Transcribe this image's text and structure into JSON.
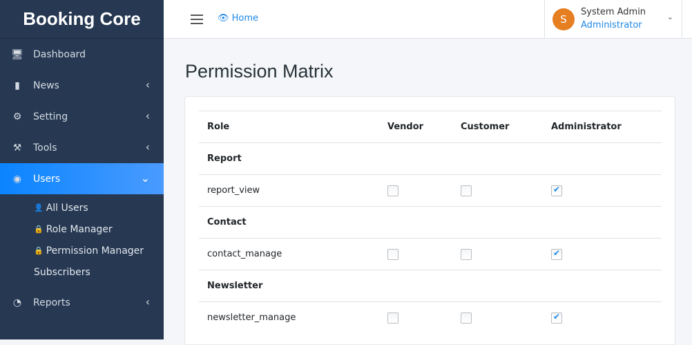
{
  "brand": "Booking Core",
  "sidebar": {
    "items": [
      {
        "label": "Dashboard",
        "icon": "monitor-icon",
        "chevron": false
      },
      {
        "label": "News",
        "icon": "book-icon",
        "chevron": true
      },
      {
        "label": "Setting",
        "icon": "gear-icon",
        "chevron": true
      },
      {
        "label": "Tools",
        "icon": "hammer-icon",
        "chevron": true
      },
      {
        "label": "Users",
        "icon": "users-icon",
        "chevron": true,
        "active": true
      },
      {
        "label": "Reports",
        "icon": "pie-chart-icon",
        "chevron": true
      }
    ],
    "users_sub": [
      {
        "label": "All Users",
        "icon": "user-icon"
      },
      {
        "label": "Role Manager",
        "icon": "lock-icon"
      },
      {
        "label": "Permission Manager",
        "icon": "lock-icon"
      },
      {
        "label": "Subscribers",
        "icon": ""
      }
    ]
  },
  "topbar": {
    "home": "Home",
    "user_name": "System Admin",
    "user_role": "Administrator",
    "avatar_letter": "S",
    "avatar_color": "#e67e22"
  },
  "page_title": "Permission Matrix",
  "table": {
    "headers": [
      "Role",
      "Vendor",
      "Customer",
      "Administrator"
    ],
    "groups": [
      {
        "name": "Report",
        "rows": [
          {
            "perm": "report_view",
            "values": [
              false,
              false,
              true
            ]
          }
        ]
      },
      {
        "name": "Contact",
        "rows": [
          {
            "perm": "contact_manage",
            "values": [
              false,
              false,
              true
            ]
          }
        ]
      },
      {
        "name": "Newsletter",
        "rows": [
          {
            "perm": "newsletter_manage",
            "values": [
              false,
              false,
              true
            ]
          }
        ]
      }
    ]
  }
}
